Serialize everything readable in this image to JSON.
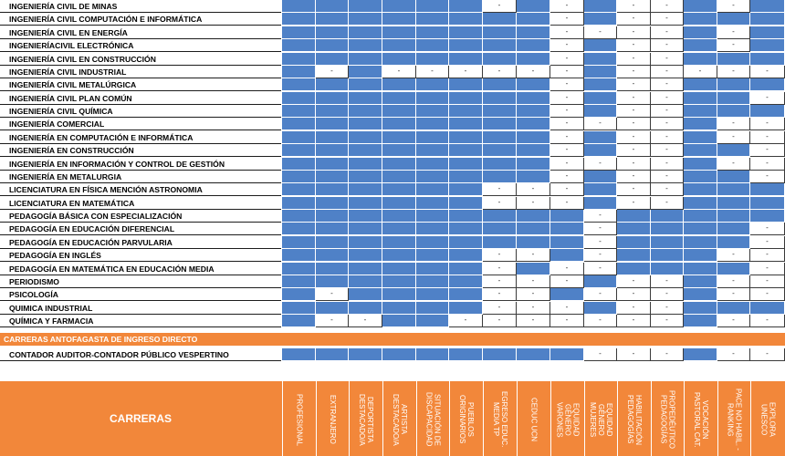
{
  "columns": [
    "PROFESIONAL",
    "EXTRANJERO",
    "DEPORTISTA DESTACADO/A",
    "ARTISTA DESTACADO/A",
    "SITUACIÓN DE DISCAPACIDAD",
    "PUEBLOS ORIGINARIOS",
    "EGRESO EDUC. MEDIA TP",
    "CEDUC UCN",
    "EQUIDAD GÉNERO VARONES",
    "EQUIDAD GÉNERO MUJERES",
    "HABILITACIÓN PEDAGOGÍAS",
    "PROPEDÉUTICO PEDAGOGÍAS",
    "VOCACIÓN PASTORAL CAT.",
    "PACE NO HABIL. - RANKING",
    "EXPLORA UNESCO"
  ],
  "header": {
    "carreras_label": "CARRERAS"
  },
  "section_banner": "CARRERAS ANTOFAGASTA DE INGRESO DIRECTO",
  "rows": [
    {
      "name": "INGENIERÍA CIVIL DE MINAS",
      "cells": [
        "Y",
        "Y",
        "Y",
        "Y",
        "Y",
        "Y",
        "-",
        "Y",
        "-",
        "Y",
        "-",
        "-",
        "Y",
        "-",
        "Y"
      ]
    },
    {
      "name": "INGENIERÍA CIVIL COMPUTACIÓN E INFORMÁTICA",
      "cells": [
        "Y",
        "Y",
        "Y",
        "Y",
        "Y",
        "Y",
        "Y",
        "Y",
        "-",
        "Y",
        "-",
        "-",
        "Y",
        "Y",
        "Y"
      ]
    },
    {
      "name": "INGENIERÍA CIVIL EN ENERGÍA",
      "cells": [
        "Y",
        "Y",
        "Y",
        "Y",
        "Y",
        "Y",
        "Y",
        "Y",
        "-",
        "-",
        "-",
        "-",
        "Y",
        "-",
        "Y"
      ]
    },
    {
      "name": "INGENIERÍACIVIL ELECTRÓNICA",
      "cells": [
        "Y",
        "Y",
        "Y",
        "Y",
        "Y",
        "Y",
        "Y",
        "Y",
        "-",
        "Y",
        "-",
        "-",
        "Y",
        "-",
        "Y"
      ]
    },
    {
      "name": "INGENIERÍA CIVIL EN CONSTRUCCIÓN",
      "cells": [
        "Y",
        "Y",
        "Y",
        "Y",
        "Y",
        "Y",
        "Y",
        "Y",
        "-",
        "Y",
        "-",
        "-",
        "Y",
        "Y",
        "Y"
      ]
    },
    {
      "name": "INGENIERÍA CIVIL INDUSTRIAL",
      "cells": [
        "Y",
        "-",
        "Y",
        "-",
        "-",
        "-",
        "-",
        "-",
        "-",
        "Y",
        "-",
        "-",
        "-",
        "-",
        "-"
      ]
    },
    {
      "name": "INGENIERÍA CIVIL METALÚRGICA",
      "cells": [
        "Y",
        "Y",
        "Y",
        "Y",
        "Y",
        "Y",
        "Y",
        "Y",
        "-",
        "Y",
        "-",
        "-",
        "Y",
        "Y",
        "Y"
      ]
    },
    {
      "name": "INGENIERÍA CIVIL PLAN COMÚN",
      "cells": [
        "Y",
        "Y",
        "Y",
        "Y",
        "Y",
        "Y",
        "Y",
        "Y",
        "-",
        "Y",
        "-",
        "-",
        "Y",
        "Y",
        "-"
      ]
    },
    {
      "name": "INGENIERÍA CIVIL QUÍMICA",
      "cells": [
        "Y",
        "Y",
        "Y",
        "Y",
        "Y",
        "Y",
        "Y",
        "Y",
        "-",
        "Y",
        "-",
        "-",
        "Y",
        "Y",
        "Y"
      ]
    },
    {
      "name": "INGENIERÍA COMERCIAL",
      "cells": [
        "Y",
        "Y",
        "Y",
        "Y",
        "Y",
        "Y",
        "Y",
        "Y",
        "-",
        "-",
        "-",
        "-",
        "Y",
        "-",
        "-"
      ]
    },
    {
      "name": "INGENIERÍA EN COMPUTACIÓN E INFORMÁTICA",
      "cells": [
        "Y",
        "Y",
        "Y",
        "Y",
        "Y",
        "Y",
        "Y",
        "Y",
        "-",
        "Y",
        "-",
        "-",
        "Y",
        "-",
        "-"
      ]
    },
    {
      "name": "INGENIERÍA EN CONSTRUCCIÓN",
      "cells": [
        "Y",
        "Y",
        "Y",
        "Y",
        "Y",
        "Y",
        "Y",
        "Y",
        "-",
        "Y",
        "-",
        "-",
        "Y",
        "Y",
        "-"
      ]
    },
    {
      "name": "INGENIERÍA EN INFORMACIÓN Y CONTROL DE GESTIÓN",
      "cells": [
        "Y",
        "Y",
        "Y",
        "Y",
        "Y",
        "Y",
        "Y",
        "Y",
        "-",
        "-",
        "-",
        "-",
        "Y",
        "-",
        "-"
      ]
    },
    {
      "name": "INGENIERÍA EN METALURGIA",
      "cells": [
        "Y",
        "Y",
        "Y",
        "Y",
        "Y",
        "Y",
        "Y",
        "Y",
        "-",
        "Y",
        "-",
        "-",
        "Y",
        "Y",
        "-"
      ]
    },
    {
      "name": "LICENCIATURA EN FÍSICA MENCIÓN ASTRONOMIA",
      "cells": [
        "Y",
        "Y",
        "Y",
        "Y",
        "Y",
        "Y",
        "-",
        "-",
        "-",
        "Y",
        "-",
        "-",
        "Y",
        "Y",
        "Y"
      ]
    },
    {
      "name": "LICENCIATURA EN MATEMÁTICA",
      "cells": [
        "Y",
        "Y",
        "Y",
        "Y",
        "Y",
        "Y",
        "-",
        "-",
        "-",
        "Y",
        "-",
        "-",
        "Y",
        "Y",
        "Y"
      ]
    },
    {
      "name": "PEDAGOGÍA BÁSICA CON ESPECIALIZACIÓN",
      "cells": [
        "Y",
        "Y",
        "Y",
        "Y",
        "Y",
        "Y",
        "Y",
        "Y",
        "Y",
        "-",
        "Y",
        "Y",
        "Y",
        "Y",
        "Y"
      ]
    },
    {
      "name": "PEDAGOGÍA EN EDUCACIÓN DIFERENCIAL",
      "cells": [
        "Y",
        "Y",
        "Y",
        "Y",
        "Y",
        "Y",
        "Y",
        "Y",
        "Y",
        "-",
        "Y",
        "Y",
        "Y",
        "Y",
        "-"
      ]
    },
    {
      "name": "PEDAGOGÍA EN EDUCACIÓN PARVULARIA",
      "cells": [
        "Y",
        "Y",
        "Y",
        "Y",
        "Y",
        "Y",
        "Y",
        "Y",
        "Y",
        "-",
        "Y",
        "Y",
        "Y",
        "Y",
        "-"
      ]
    },
    {
      "name": "PEDAGOGÍA EN INGLÉS",
      "cells": [
        "Y",
        "Y",
        "Y",
        "Y",
        "Y",
        "Y",
        "-",
        "-",
        "Y",
        "-",
        "Y",
        "Y",
        "Y",
        "-",
        "-"
      ]
    },
    {
      "name": "PEDAGOGÍA EN MATEMÁTICA EN EDUCACIÓN MEDIA",
      "cells": [
        "Y",
        "Y",
        "Y",
        "Y",
        "Y",
        "Y",
        "-",
        "Y",
        "-",
        "-",
        "Y",
        "Y",
        "Y",
        "Y",
        "-"
      ]
    },
    {
      "name": "PERIODISMO",
      "cells": [
        "Y",
        "Y",
        "Y",
        "Y",
        "Y",
        "Y",
        "-",
        "-",
        "-",
        "Y",
        "-",
        "-",
        "Y",
        "-",
        "-"
      ]
    },
    {
      "name": "PSICOLOGÍA",
      "cells": [
        "Y",
        "-",
        "Y",
        "Y",
        "Y",
        "Y",
        "-",
        "-",
        "Y",
        "-",
        "-",
        "-",
        "Y",
        "-",
        "-"
      ]
    },
    {
      "name": "QUIMICA INDUSTRIAL",
      "cells": [
        "Y",
        "Y",
        "Y",
        "Y",
        "Y",
        "Y",
        "-",
        "-",
        "-",
        "Y",
        "-",
        "-",
        "Y",
        "Y",
        "Y"
      ]
    },
    {
      "name": "QUÍMICA Y FARMACIA",
      "cells": [
        "Y",
        "-",
        "-",
        "Y",
        "Y",
        "-",
        "-",
        "-",
        "-",
        "-",
        "-",
        "-",
        "Y",
        "-",
        "-"
      ]
    }
  ],
  "direct_rows": [
    {
      "name": "CONTADOR AUDITOR-CONTADOR PÚBLICO  VESPERTINO",
      "cells": [
        "Y",
        "Y",
        "Y",
        "Y",
        "Y",
        "Y",
        "Y",
        "Y",
        "Y",
        "-",
        "-",
        "-",
        "Y",
        "-",
        "-"
      ]
    }
  ],
  "colors": {
    "yes": "#4f81c7",
    "header": "#f2873a"
  }
}
